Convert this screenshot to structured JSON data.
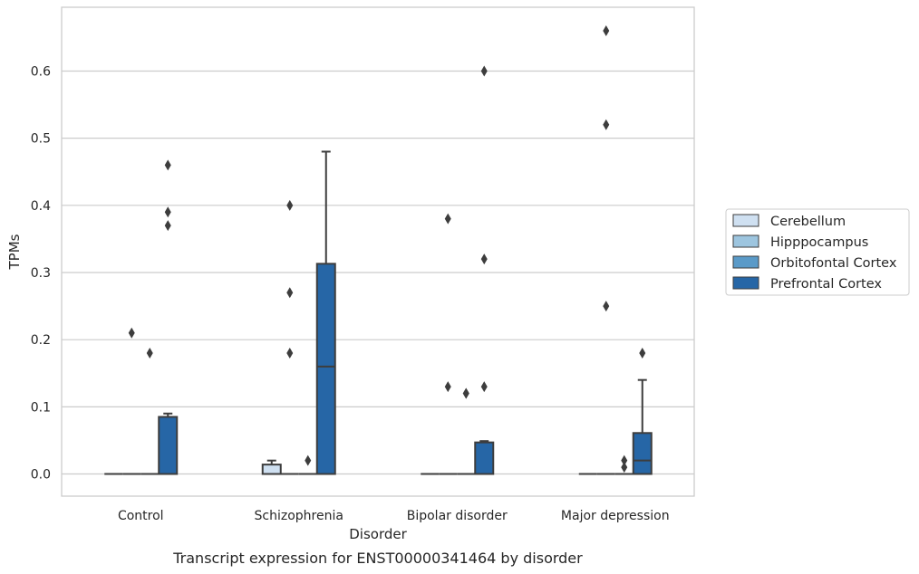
{
  "chart_data": {
    "type": "box",
    "caption": "Transcript expression for ENST00000341464 by disorder",
    "xlabel": "Disorder",
    "ylabel": "TPMs",
    "ylim": [
      -0.033,
      0.695
    ],
    "yticks": [
      "0.0",
      "0.1",
      "0.2",
      "0.3",
      "0.4",
      "0.5",
      "0.6"
    ],
    "ytick_values": [
      0.0,
      0.1,
      0.2,
      0.3,
      0.4,
      0.5,
      0.6
    ],
    "grid": "horizontal",
    "legend_position": "right",
    "categories": [
      "Control",
      "Schizophrenia",
      "Bipolar disorder",
      "Major depression"
    ],
    "series": [
      {
        "name": "Cerebellum",
        "color": "#cfe0f1",
        "boxes": [
          {
            "q1": 0.0,
            "median": 0.0,
            "q3": 0.0,
            "whisker_low": 0.0,
            "whisker_high": 0.0,
            "outliers": []
          },
          {
            "q1": 0.0,
            "median": 0.0,
            "q3": 0.014,
            "whisker_low": 0.0,
            "whisker_high": 0.02,
            "outliers": []
          },
          {
            "q1": 0.0,
            "median": 0.0,
            "q3": 0.0,
            "whisker_low": 0.0,
            "whisker_high": 0.0,
            "outliers": []
          },
          {
            "q1": 0.0,
            "median": 0.0,
            "q3": 0.0,
            "whisker_low": 0.0,
            "whisker_high": 0.0,
            "outliers": []
          }
        ]
      },
      {
        "name": "Hipppocampus",
        "color": "#9dc5df",
        "boxes": [
          {
            "q1": 0.0,
            "median": 0.0,
            "q3": 0.0,
            "whisker_low": 0.0,
            "whisker_high": 0.0,
            "outliers": [
              0.21
            ]
          },
          {
            "q1": 0.0,
            "median": 0.0,
            "q3": 0.0,
            "whisker_low": 0.0,
            "whisker_high": 0.0,
            "outliers": [
              0.4,
              0.27,
              0.18
            ]
          },
          {
            "q1": 0.0,
            "median": 0.0,
            "q3": 0.0,
            "whisker_low": 0.0,
            "whisker_high": 0.0,
            "outliers": [
              0.38,
              0.13
            ]
          },
          {
            "q1": 0.0,
            "median": 0.0,
            "q3": 0.0,
            "whisker_low": 0.0,
            "whisker_high": 0.0,
            "outliers": [
              0.66,
              0.52,
              0.25
            ]
          }
        ]
      },
      {
        "name": "Orbitofontal Cortex",
        "color": "#5a9ac8",
        "boxes": [
          {
            "q1": 0.0,
            "median": 0.0,
            "q3": 0.0,
            "whisker_low": 0.0,
            "whisker_high": 0.0,
            "outliers": [
              0.18
            ]
          },
          {
            "q1": 0.0,
            "median": 0.0,
            "q3": 0.0,
            "whisker_low": 0.0,
            "whisker_high": 0.0,
            "outliers": [
              0.02
            ]
          },
          {
            "q1": 0.0,
            "median": 0.0,
            "q3": 0.0,
            "whisker_low": 0.0,
            "whisker_high": 0.0,
            "outliers": [
              0.12,
              0.12
            ]
          },
          {
            "q1": 0.0,
            "median": 0.0,
            "q3": 0.0,
            "whisker_low": 0.0,
            "whisker_high": 0.0,
            "outliers": [
              0.02,
              0.01
            ]
          }
        ]
      },
      {
        "name": "Prefrontal Cortex",
        "color": "#2666a6",
        "boxes": [
          {
            "q1": 0.0,
            "median": 0.0,
            "q3": 0.085,
            "whisker_low": 0.0,
            "whisker_high": 0.09,
            "outliers": [
              0.46,
              0.39,
              0.37
            ]
          },
          {
            "q1": 0.0,
            "median": 0.16,
            "q3": 0.313,
            "whisker_low": 0.0,
            "whisker_high": 0.48,
            "outliers": []
          },
          {
            "q1": 0.0,
            "median": 0.0,
            "q3": 0.047,
            "whisker_low": 0.0,
            "whisker_high": 0.049,
            "outliers": [
              0.6,
              0.32,
              0.13
            ]
          },
          {
            "q1": 0.0,
            "median": 0.02,
            "q3": 0.061,
            "whisker_low": 0.0,
            "whisker_high": 0.14,
            "outliers": [
              0.18
            ]
          }
        ]
      }
    ]
  }
}
